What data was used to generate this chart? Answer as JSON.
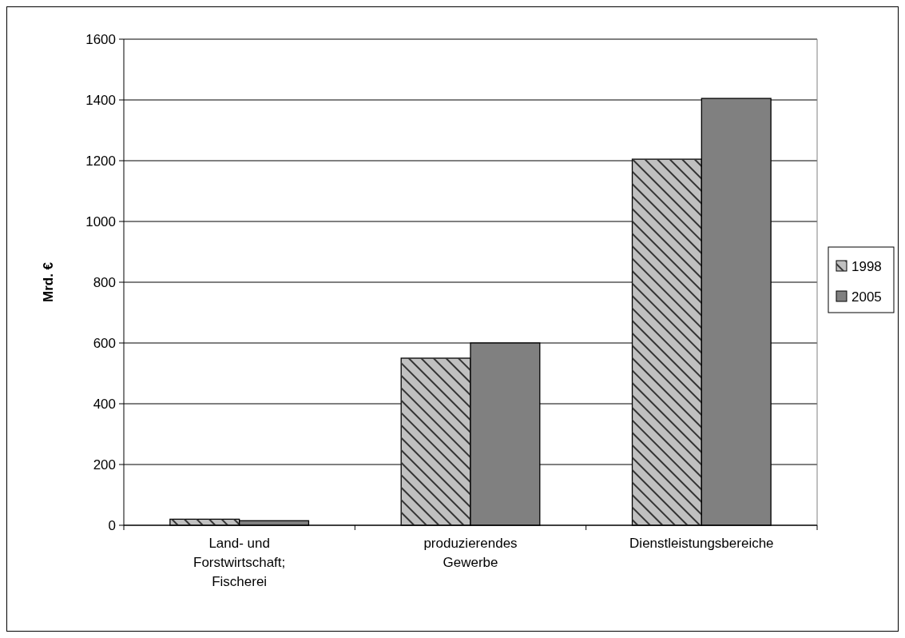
{
  "chart_data": {
    "type": "bar",
    "ylabel": "Mrd. €",
    "categories": [
      "Land- und Forstwirtschaft; Fischerei",
      "produzierendes Gewerbe",
      "Dienstleistungsbereiche"
    ],
    "series": [
      {
        "name": "1998",
        "color": "#c0c0c0",
        "values": [
          20,
          550,
          1205
        ]
      },
      {
        "name": "2005",
        "color": "#808080",
        "values": [
          15,
          600,
          1405
        ]
      }
    ],
    "ylim": [
      0,
      1600
    ],
    "yticks": [
      0,
      200,
      400,
      600,
      800,
      1000,
      1200,
      1400,
      1600
    ],
    "grid": "y",
    "legend": "right"
  }
}
